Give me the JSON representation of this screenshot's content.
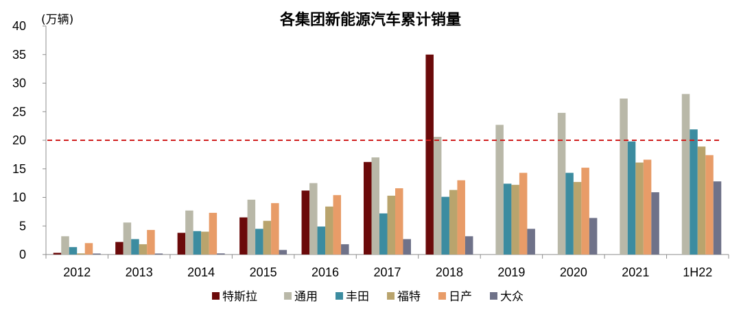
{
  "chart_data": {
    "type": "bar",
    "title": "各集团新能源汽车累计销量",
    "unit_label": "(万辆)",
    "xlabel": "",
    "ylabel": "",
    "ylim": [
      0,
      40
    ],
    "yticks": [
      "0",
      "5",
      "10",
      "15",
      "20",
      "25",
      "30",
      "35",
      "40"
    ],
    "categories": [
      "2012",
      "2013",
      "2014",
      "2015",
      "2016",
      "2017",
      "2018",
      "2019",
      "2020",
      "2021",
      "1H22"
    ],
    "series": [
      {
        "name": "特斯拉",
        "color": "#6b0a0a",
        "values": [
          0.3,
          2.2,
          3.8,
          6.5,
          11.2,
          16.2,
          35.0,
          null,
          null,
          null,
          null
        ]
      },
      {
        "name": "通用",
        "color": "#b9b8a8",
        "values": [
          3.2,
          5.6,
          7.7,
          9.6,
          12.5,
          17.0,
          20.6,
          22.7,
          24.8,
          27.3,
          28.1
        ]
      },
      {
        "name": "丰田",
        "color": "#3c8ca0",
        "values": [
          1.3,
          2.7,
          4.1,
          4.5,
          4.9,
          7.2,
          10.1,
          12.4,
          14.3,
          19.8,
          21.9
        ]
      },
      {
        "name": "福特",
        "color": "#b9a46d",
        "values": [
          0.2,
          1.8,
          4.0,
          5.9,
          8.4,
          10.3,
          11.3,
          12.2,
          12.7,
          16.1,
          18.9
        ]
      },
      {
        "name": "日产",
        "color": "#e89c68",
        "values": [
          2.0,
          4.3,
          7.3,
          9.0,
          10.4,
          11.6,
          13.0,
          14.3,
          15.2,
          16.6,
          17.4
        ]
      },
      {
        "name": "大众",
        "color": "#6f7289",
        "values": [
          0.1,
          0.1,
          0.2,
          0.8,
          1.8,
          2.7,
          3.2,
          4.5,
          6.4,
          10.9,
          12.8
        ]
      }
    ],
    "reference_line": {
      "value": 20,
      "color": "#d01c1c",
      "style": "dashed"
    },
    "legend_position": "bottom",
    "grid": false
  }
}
